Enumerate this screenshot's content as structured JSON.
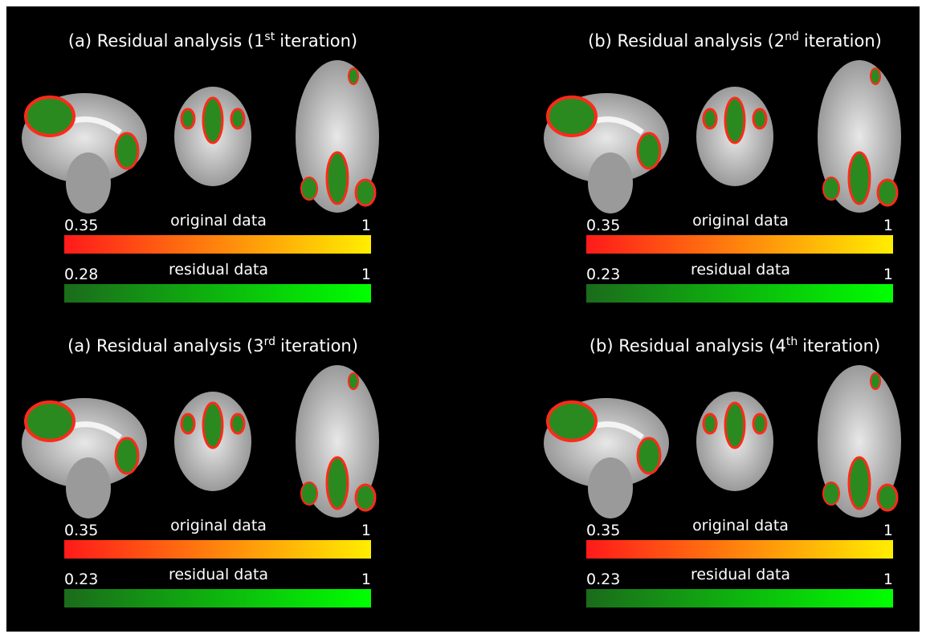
{
  "panels": [
    {
      "title": {
        "before": "(a) Residual analysis (1",
        "sup": "st",
        "after": "iteration)"
      },
      "colorbars": [
        {
          "label": "original data",
          "min": 0.35,
          "max": 1,
          "colors": [
            "#ff1a1a",
            "#ffee00"
          ]
        },
        {
          "label": "residual data",
          "min": 0.28,
          "max": 1,
          "colors": [
            "#1b6b1b",
            "#00ff00"
          ]
        }
      ]
    },
    {
      "title": {
        "before": "(b) Residual analysis (2",
        "sup": "nd",
        "after": "iteration)"
      },
      "colorbars": [
        {
          "label": "original data",
          "min": 0.35,
          "max": 1,
          "colors": [
            "#ff1a1a",
            "#ffee00"
          ]
        },
        {
          "label": "residual data",
          "min": 0.23,
          "max": 1,
          "colors": [
            "#1b6b1b",
            "#00ff00"
          ]
        }
      ]
    },
    {
      "title": {
        "before": "(a) Residual analysis (3",
        "sup": "rd",
        "after": "iteration)"
      },
      "colorbars": [
        {
          "label": "original data",
          "min": 0.35,
          "max": 1,
          "colors": [
            "#ff1a1a",
            "#ffee00"
          ]
        },
        {
          "label": "residual data",
          "min": 0.23,
          "max": 1,
          "colors": [
            "#1b6b1b",
            "#00ff00"
          ]
        }
      ]
    },
    {
      "title": {
        "before": "(b) Residual analysis (4",
        "sup": "th",
        "after": "iteration)"
      },
      "colorbars": [
        {
          "label": "original data",
          "min": 0.35,
          "max": 1,
          "colors": [
            "#ff1a1a",
            "#ffee00"
          ]
        },
        {
          "label": "residual data",
          "min": 0.23,
          "max": 1,
          "colors": [
            "#1b6b1b",
            "#00ff00"
          ]
        }
      ]
    }
  ]
}
